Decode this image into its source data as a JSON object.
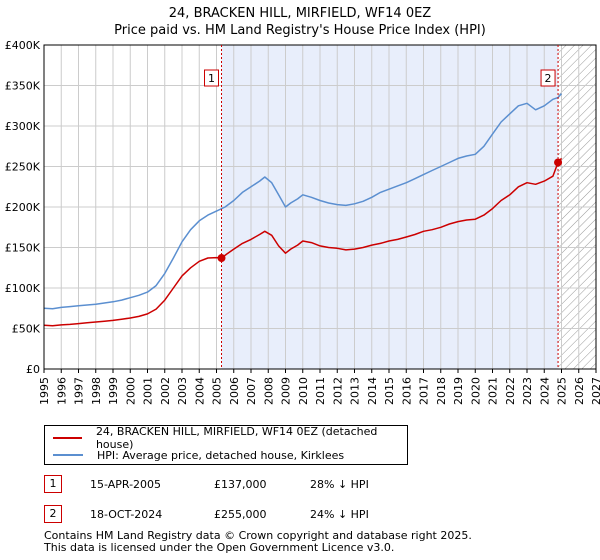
{
  "title": "24, BRACKEN HILL, MIRFIELD, WF14 0EZ",
  "subtitle": "Price paid vs. HM Land Registry's House Price Index (HPI)",
  "colors": {
    "red_series": "#cc0000",
    "blue_series": "#5b8fd0",
    "shade": "#e8eefb",
    "grid": "#cccccc",
    "hatch": "#999999"
  },
  "chart_data": {
    "type": "line",
    "title": "24, BRACKEN HILL, MIRFIELD, WF14 0EZ",
    "subtitle": "Price paid vs. HM Land Registry's House Price Index (HPI)",
    "xlim": [
      1995,
      2027
    ],
    "ylim": [
      0,
      400000
    ],
    "y_ticks": [
      0,
      50000,
      100000,
      150000,
      200000,
      250000,
      300000,
      350000,
      400000
    ],
    "y_tick_labels": [
      "£0",
      "£50K",
      "£100K",
      "£150K",
      "£200K",
      "£250K",
      "£300K",
      "£350K",
      "£400K"
    ],
    "x_ticks": [
      1995,
      1996,
      1997,
      1998,
      1999,
      2000,
      2001,
      2002,
      2003,
      2004,
      2005,
      2006,
      2007,
      2008,
      2009,
      2010,
      2011,
      2012,
      2013,
      2014,
      2015,
      2016,
      2017,
      2018,
      2019,
      2020,
      2021,
      2022,
      2023,
      2024,
      2025,
      2026,
      2027
    ],
    "x_tick_labels": [
      "1995",
      "1996",
      "1997",
      "1998",
      "1999",
      "2000",
      "2001",
      "2002",
      "2003",
      "2004",
      "2005",
      "2006",
      "2007",
      "2008",
      "2009",
      "2010",
      "2011",
      "2012",
      "2013",
      "2014",
      "2015",
      "2016",
      "2017",
      "2018",
      "2019",
      "2020",
      "2021",
      "2022",
      "2023",
      "2024",
      "2025",
      "2026",
      "2027"
    ],
    "grid": true,
    "shaded_range": [
      2005.29,
      2024.8
    ],
    "hatched_from": 2024.8,
    "series": [
      {
        "name": "24, BRACKEN HILL, MIRFIELD, WF14 0EZ (detached house)",
        "color": "#cc0000",
        "x": [
          1995.0,
          1995.5,
          1996.0,
          1996.5,
          1997.0,
          1997.5,
          1998.0,
          1998.5,
          1999.0,
          1999.5,
          2000.0,
          2000.5,
          2001.0,
          2001.5,
          2002.0,
          2002.5,
          2003.0,
          2003.5,
          2004.0,
          2004.5,
          2005.0,
          2005.29,
          2005.6,
          2006.0,
          2006.5,
          2007.0,
          2007.5,
          2007.8,
          2008.2,
          2008.6,
          2009.0,
          2009.3,
          2009.7,
          2010.0,
          2010.5,
          2011.0,
          2011.5,
          2012.0,
          2012.5,
          2013.0,
          2013.5,
          2014.0,
          2014.5,
          2015.0,
          2015.5,
          2016.0,
          2016.5,
          2017.0,
          2017.5,
          2018.0,
          2018.5,
          2019.0,
          2019.5,
          2020.0,
          2020.5,
          2021.0,
          2021.5,
          2022.0,
          2022.5,
          2023.0,
          2023.5,
          2024.0,
          2024.5,
          2024.8,
          2025.0
        ],
        "values": [
          54000,
          53500,
          54500,
          55000,
          56000,
          57000,
          58000,
          59000,
          60000,
          61500,
          63000,
          65000,
          68000,
          74000,
          85000,
          100000,
          115000,
          125000,
          133000,
          137000,
          137500,
          137000,
          142000,
          148000,
          155000,
          160000,
          166000,
          170000,
          165000,
          152000,
          143000,
          148000,
          153000,
          158000,
          156000,
          152000,
          150000,
          149000,
          147000,
          148000,
          150000,
          153000,
          155000,
          158000,
          160000,
          163000,
          166000,
          170000,
          172000,
          175000,
          179000,
          182000,
          184000,
          185000,
          190000,
          198000,
          208000,
          215000,
          225000,
          230000,
          228000,
          232000,
          238000,
          255000,
          260000
        ]
      },
      {
        "name": "HPI: Average price, detached house, Kirklees",
        "color": "#5b8fd0",
        "x": [
          1995.0,
          1995.5,
          1996.0,
          1996.5,
          1997.0,
          1997.5,
          1998.0,
          1998.5,
          1999.0,
          1999.5,
          2000.0,
          2000.5,
          2001.0,
          2001.5,
          2002.0,
          2002.5,
          2003.0,
          2003.5,
          2004.0,
          2004.5,
          2005.0,
          2005.5,
          2006.0,
          2006.5,
          2007.0,
          2007.5,
          2007.8,
          2008.2,
          2008.6,
          2009.0,
          2009.3,
          2009.7,
          2010.0,
          2010.5,
          2011.0,
          2011.5,
          2012.0,
          2012.5,
          2013.0,
          2013.5,
          2014.0,
          2014.5,
          2015.0,
          2015.5,
          2016.0,
          2016.5,
          2017.0,
          2017.5,
          2018.0,
          2018.5,
          2019.0,
          2019.5,
          2020.0,
          2020.5,
          2021.0,
          2021.5,
          2022.0,
          2022.5,
          2023.0,
          2023.5,
          2024.0,
          2024.5,
          2024.8,
          2025.0
        ],
        "values": [
          75000,
          74500,
          76000,
          77000,
          78000,
          79000,
          80000,
          81500,
          83000,
          85000,
          88000,
          91000,
          95000,
          103000,
          118000,
          137000,
          157000,
          172000,
          183000,
          190000,
          195000,
          200000,
          208000,
          218000,
          225000,
          232000,
          237000,
          230000,
          215000,
          200000,
          205000,
          210000,
          215000,
          212000,
          208000,
          205000,
          203000,
          202000,
          204000,
          207000,
          212000,
          218000,
          222000,
          226000,
          230000,
          235000,
          240000,
          245000,
          250000,
          255000,
          260000,
          263000,
          265000,
          275000,
          290000,
          305000,
          315000,
          325000,
          328000,
          320000,
          325000,
          333000,
          335000,
          340000
        ]
      }
    ],
    "markers": [
      {
        "label": "1",
        "x": 2005.29,
        "value": 137000
      },
      {
        "label": "2",
        "x": 2024.8,
        "value": 255000
      }
    ]
  },
  "legend": {
    "red_label": "24, BRACKEN HILL, MIRFIELD, WF14 0EZ (detached house)",
    "blue_label": "HPI: Average price, detached house, Kirklees"
  },
  "transactions": [
    {
      "num": "1",
      "date": "15-APR-2005",
      "price": "£137,000",
      "hpi": "28% ↓ HPI"
    },
    {
      "num": "2",
      "date": "18-OCT-2024",
      "price": "£255,000",
      "hpi": "24% ↓ HPI"
    }
  ],
  "footer": {
    "line1": "Contains HM Land Registry data © Crown copyright and database right 2025.",
    "line2": "This data is licensed under the Open Government Licence v3.0."
  }
}
